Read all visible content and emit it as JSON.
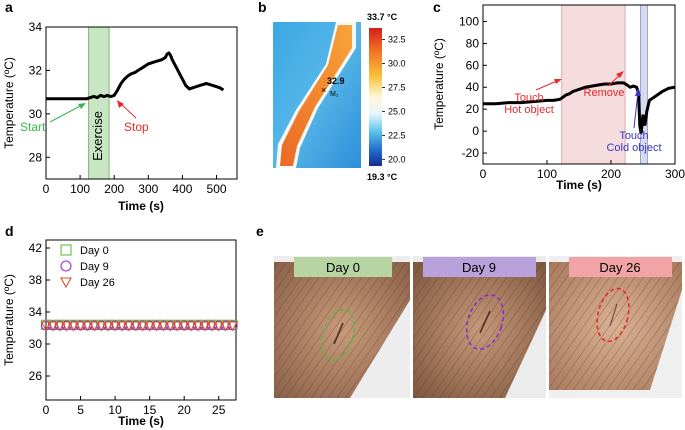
{
  "panels": {
    "a": "a",
    "b": "b",
    "c": "c",
    "d": "d",
    "e": "e"
  },
  "chart_data": [
    {
      "id": "a",
      "type": "line",
      "xlabel": "Time (s)",
      "ylabel": "Temperature (ºC)",
      "xlim": [
        0,
        560
      ],
      "ylim": [
        27,
        34
      ],
      "xticks": [
        0,
        100,
        200,
        300,
        400,
        500
      ],
      "yticks": [
        28,
        30,
        32,
        34
      ],
      "x": [
        0,
        20,
        40,
        60,
        80,
        100,
        120,
        130,
        140,
        150,
        160,
        170,
        180,
        190,
        200,
        210,
        220,
        230,
        240,
        250,
        260,
        270,
        280,
        290,
        300,
        310,
        320,
        330,
        340,
        350,
        355,
        360,
        365,
        370,
        380,
        390,
        400,
        410,
        420,
        430,
        440,
        450,
        460,
        470,
        480,
        490,
        500,
        510,
        520
      ],
      "y": [
        30.7,
        30.7,
        30.7,
        30.7,
        30.7,
        30.7,
        30.7,
        30.75,
        30.8,
        30.75,
        30.85,
        30.8,
        30.85,
        30.8,
        30.85,
        31.1,
        31.4,
        31.6,
        31.75,
        31.85,
        31.9,
        32.0,
        32.1,
        32.2,
        32.3,
        32.35,
        32.4,
        32.45,
        32.5,
        32.6,
        32.75,
        32.8,
        32.7,
        32.5,
        32.2,
        31.9,
        31.6,
        31.3,
        31.15,
        31.2,
        31.25,
        31.3,
        31.35,
        31.4,
        31.35,
        31.3,
        31.25,
        31.2,
        31.1
      ],
      "shaded": {
        "from": 125,
        "to": 185,
        "label": "Exercise",
        "color": "#c8e6c4"
      },
      "annotations": [
        {
          "text": "Start",
          "color": "#3ab54a"
        },
        {
          "text": "Stop",
          "color": "#e8282b"
        }
      ]
    },
    {
      "id": "b",
      "type": "heatmap",
      "colorbar_max_label": "33.7 °C",
      "colorbar_min_label": "19.3 °C",
      "colorbar_ticks": [
        "32.5",
        "30.0",
        "27.5",
        "25.0",
        "22.5",
        "20.0"
      ],
      "colorbar_tick_values": [
        32.5,
        30.0,
        27.5,
        25.0,
        22.5,
        20.0
      ],
      "range": [
        19.3,
        33.7
      ],
      "marker_value": "32.9",
      "marker_label": "M₁"
    },
    {
      "id": "c",
      "type": "line",
      "xlabel": "Time (s)",
      "ylabel": "Temperature (ºC)",
      "xlim": [
        0,
        300
      ],
      "ylim": [
        -30,
        115
      ],
      "xticks": [
        0,
        100,
        200,
        300
      ],
      "yticks": [
        -20,
        0,
        20,
        40,
        60,
        80,
        100
      ],
      "x": [
        0,
        20,
        40,
        60,
        80,
        100,
        110,
        120,
        125,
        130,
        135,
        140,
        150,
        160,
        170,
        180,
        190,
        200,
        210,
        215,
        220,
        225,
        230,
        235,
        240,
        243,
        245,
        247,
        250,
        253,
        256,
        260,
        265,
        270,
        280,
        290,
        300
      ],
      "y": [
        25,
        25,
        26,
        26,
        27,
        28,
        28,
        29,
        31,
        33,
        34,
        36,
        38,
        40,
        41,
        42,
        43,
        43,
        44,
        44,
        44,
        42,
        40,
        41,
        40,
        35,
        5,
        -2,
        15,
        5,
        18,
        28,
        30,
        32,
        36,
        39,
        40
      ],
      "shaded": [
        {
          "from": 123,
          "to": 222,
          "color": "#f6dcdc"
        },
        {
          "from": 246,
          "to": 257,
          "color": "#d6dcee"
        }
      ],
      "annotations": [
        {
          "text": "Touch",
          "color": "#e8282b"
        },
        {
          "text": "Hot object",
          "color": "#e8282b"
        },
        {
          "text": "Remove",
          "color": "#e8282b"
        },
        {
          "text": "Touch",
          "color": "#3636c8"
        },
        {
          "text": "Cold object",
          "color": "#3636c8"
        }
      ]
    },
    {
      "id": "d",
      "type": "scatter",
      "xlabel": "Time (s)",
      "ylabel": "Temperature (ºC)",
      "xlim": [
        0,
        27.5
      ],
      "ylim": [
        23,
        43
      ],
      "xticks": [
        0,
        5,
        10,
        15,
        20,
        25
      ],
      "yticks": [
        26,
        30,
        34,
        38,
        42
      ],
      "series": [
        {
          "name": "Day 0",
          "marker": "square",
          "color": "#5bc236",
          "value": 32.4
        },
        {
          "name": "Day 9",
          "marker": "circle",
          "color": "#9b30d9",
          "value": 32.3
        },
        {
          "name": "Day 26",
          "marker": "triangle-down",
          "color": "#e8482b",
          "value": 32.3
        }
      ],
      "x_start": 0,
      "x_end": 27,
      "x_step": 1
    }
  ],
  "photos": [
    {
      "label": "Day 0",
      "banner": "#b7d5a3",
      "ring": "#55b848"
    },
    {
      "label": "Day 9",
      "banner": "#b9a1dc",
      "ring": "#8a2fc6"
    },
    {
      "label": "Day 26",
      "banner": "#f2a3a6",
      "ring": "#e8282b"
    }
  ]
}
